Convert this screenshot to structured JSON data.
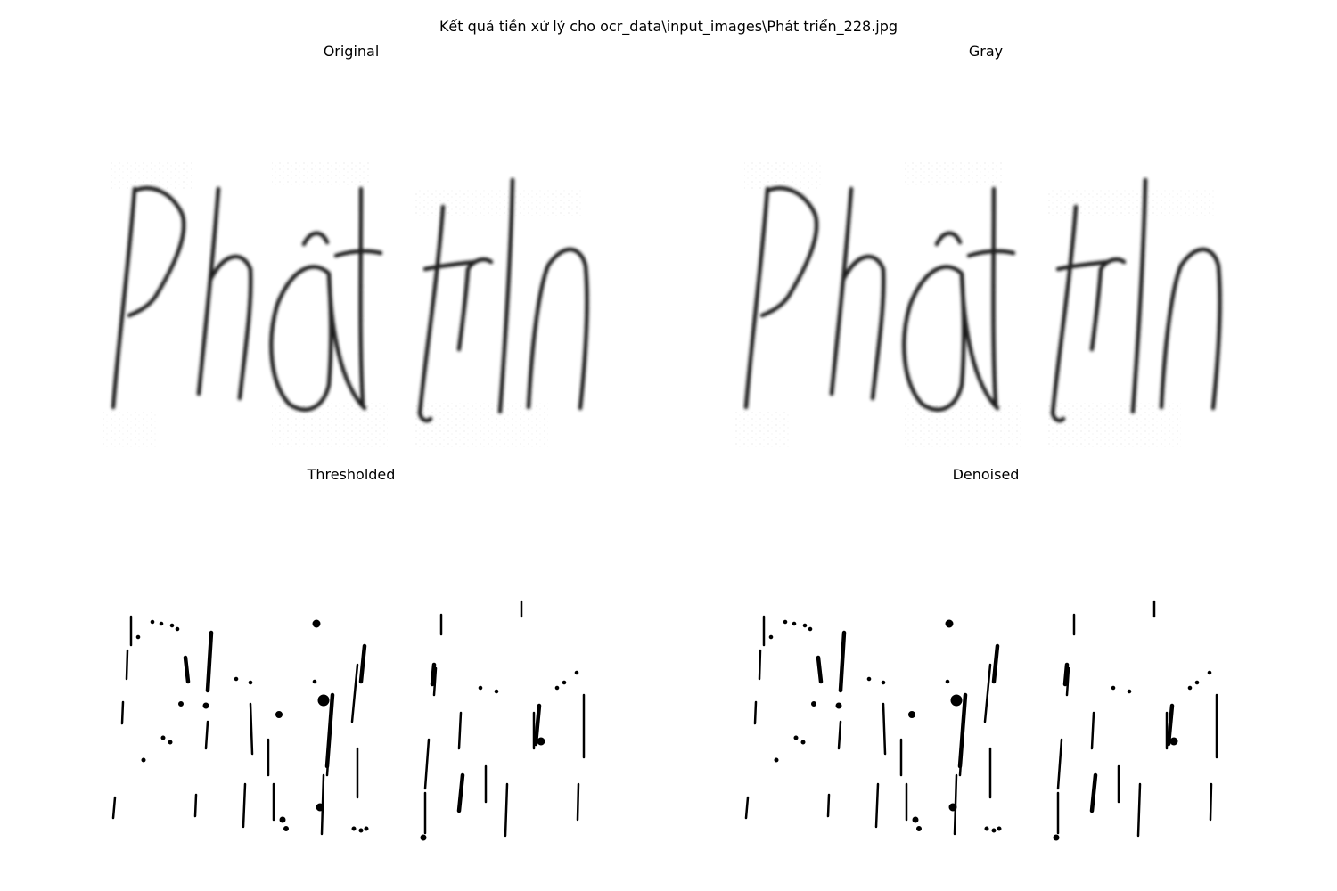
{
  "figure": {
    "suptitle": "Kết quả tiền xử lý cho ocr_data\\input_images\\Phát triển_228.jpg"
  },
  "panels": [
    {
      "title": "Original",
      "image_text": "Phát trin"
    },
    {
      "title": "Gray",
      "image_text": "Phát trin"
    },
    {
      "title": "Thresholded"
    },
    {
      "title": "Denoised"
    }
  ],
  "colors": {
    "background": "#ffffff",
    "ink": "#000000",
    "blur_ink": "#1a1a1a"
  }
}
